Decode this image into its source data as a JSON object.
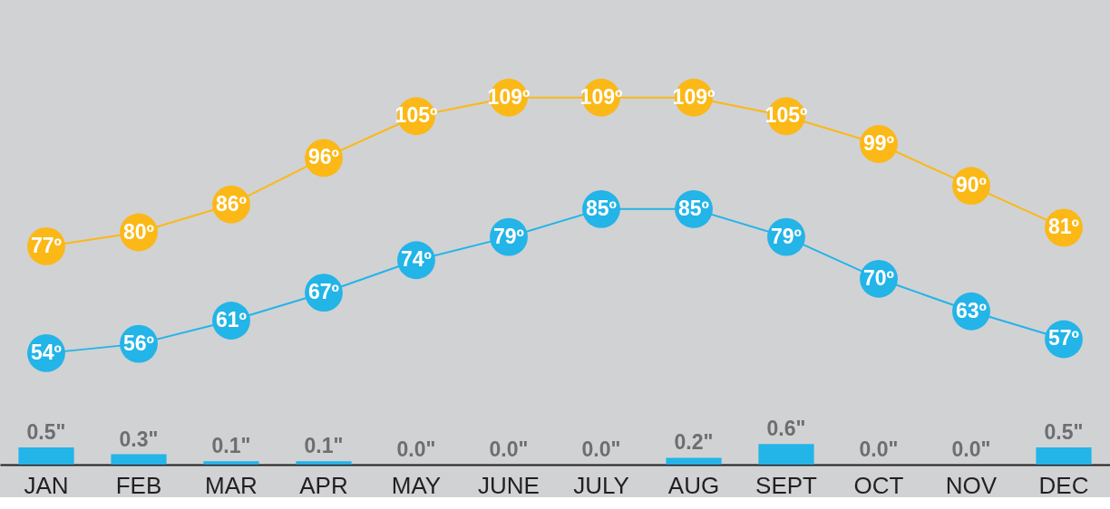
{
  "chart_data": {
    "type": "line",
    "categories": [
      "JAN",
      "FEB",
      "MAR",
      "APR",
      "MAY",
      "JUNE",
      "JULY",
      "AUG",
      "SEPT",
      "OCT",
      "NOV",
      "DEC"
    ],
    "series": [
      {
        "color": "#fbb817",
        "values": [
          77,
          80,
          86,
          96,
          105,
          109,
          109,
          109,
          105,
          99,
          90,
          81
        ],
        "value_labels": [
          "77º",
          "80º",
          "86º",
          "96º",
          "105º",
          "109º",
          "109º",
          "109º",
          "105º",
          "99º",
          "90º",
          "81º"
        ]
      },
      {
        "color": "#23b4e8",
        "values": [
          54,
          56,
          61,
          67,
          74,
          79,
          85,
          85,
          79,
          70,
          63,
          57
        ],
        "value_labels": [
          "54º",
          "56º",
          "61º",
          "67º",
          "74º",
          "79º",
          "85º",
          "85º",
          "79º",
          "70º",
          "63º",
          "57º"
        ]
      },
      {
        "type": "bar",
        "axis": "y2",
        "color": "#23b4e8",
        "values": [
          0.5,
          0.3,
          0.1,
          0.1,
          0.0,
          0.0,
          0.0,
          0.2,
          0.6,
          0.0,
          0.0,
          0.5
        ],
        "value_labels": [
          "0.5\"",
          "0.3\"",
          "0.1\"",
          "0.1\"",
          "0.0\"",
          "0.0\"",
          "0.0\"",
          "0.2\"",
          "0.6\"",
          "0.0\"",
          "0.0\"",
          "0.5\""
        ]
      }
    ],
    "ylim": [
      30,
      130
    ],
    "y2lim": [
      0,
      13.5
    ],
    "marker": "circle",
    "line_style": "solid",
    "grid": false,
    "tick_labels": "x"
  }
}
